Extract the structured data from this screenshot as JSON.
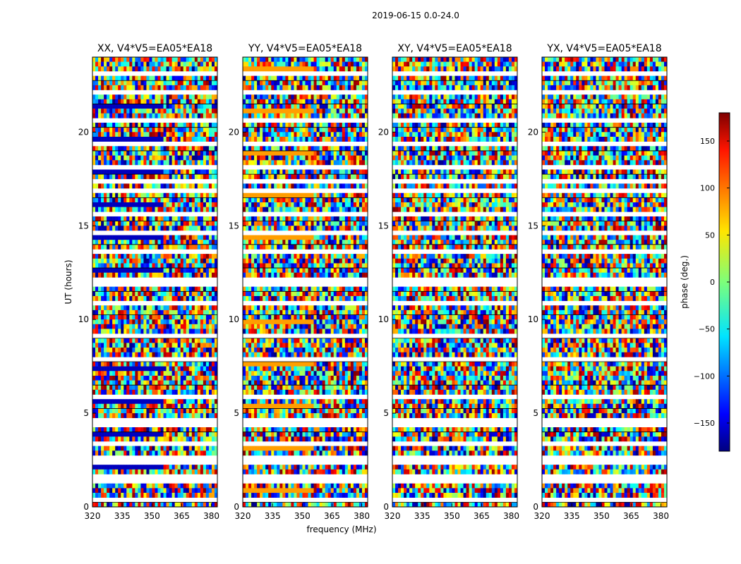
{
  "chart_data": {
    "type": "heatmap",
    "suptitle": "2019-06-15 0.0-24.0",
    "xlabel": "frequency (MHz)",
    "ylabel": "UT (hours)",
    "xlim": [
      320,
      383
    ],
    "ylim": [
      0,
      24
    ],
    "x_ticks": [
      320,
      335,
      350,
      365,
      380
    ],
    "y_ticks": [
      0,
      5,
      10,
      15,
      20
    ],
    "panels": [
      {
        "title": "XX, V4*V5=EA05*EA18",
        "y_tick_labels": [
          "0",
          "5",
          "10",
          "15",
          "20"
        ]
      },
      {
        "title": "YY, V4*V5=EA05*EA18",
        "y_tick_labels": [
          "0",
          "5",
          "10",
          "15",
          "20"
        ]
      },
      {
        "title": "XY, V4*V5=EA05*EA18",
        "y_tick_labels": [
          "0",
          "5",
          "10",
          "15",
          "20"
        ]
      },
      {
        "title": "YX, V4*V5=EA05*EA18",
        "y_tick_labels": [
          "0",
          "5",
          "10",
          "15",
          "20"
        ]
      }
    ],
    "x_tick_labels": [
      "320",
      "335",
      "350",
      "365",
      "380"
    ],
    "colorbar": {
      "label": "phase (deg.)",
      "range": [
        -180,
        180
      ],
      "ticks": [
        150,
        100,
        50,
        0,
        -50,
        -100,
        -150
      ],
      "tick_labels": [
        "150",
        "100",
        "50",
        "0",
        "−50",
        "−100",
        "−150"
      ],
      "colormap": "jet"
    },
    "flagged_rows_hours": [
      0.4,
      1.5,
      2.5,
      3.4,
      4.5,
      5.8,
      7.8,
      9.1,
      10.8,
      11.8,
      12.2,
      13.6,
      14.7,
      15.6,
      16.9,
      17.3,
      18.1,
      19.3,
      20.6,
      22.2,
      23.1
    ],
    "colors": {
      "frame": "#000000",
      "background": "#ffffff"
    }
  }
}
